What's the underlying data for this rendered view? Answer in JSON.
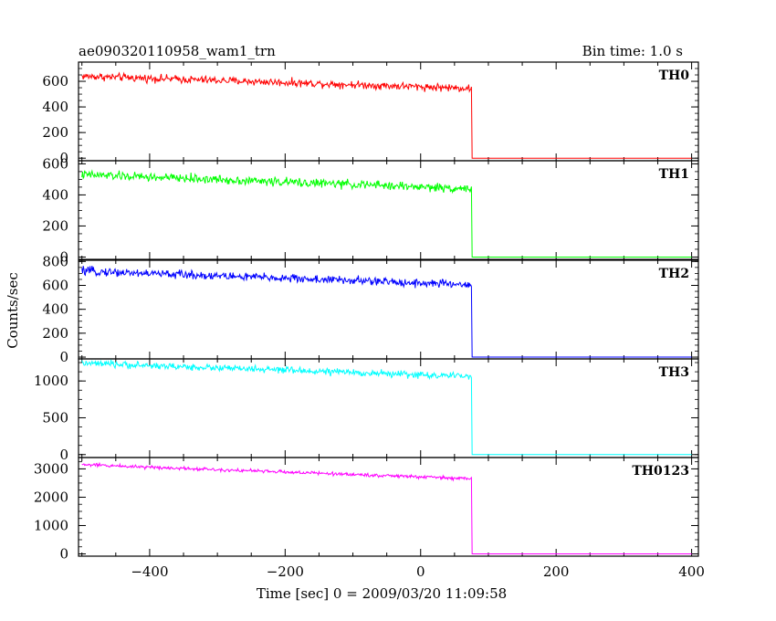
{
  "chart_data": {
    "type": "line",
    "title": "ae090320110958_wam1_trn",
    "subtitle": "Bin time: 1.0 s",
    "xlabel": "Time [sec] 0 = 2009/03/20 11:09:58",
    "ylabel": "Counts/sec",
    "xlim": [
      -505,
      410
    ],
    "x_ticks": [
      -400,
      -200,
      0,
      200,
      400
    ],
    "grid": false,
    "panels": [
      {
        "name": "TH0",
        "color": "#ff0000",
        "ylim": [
          -20,
          750
        ],
        "y_ticks": [
          0,
          200,
          400,
          600
        ],
        "x": [
          -500,
          75,
          76,
          400
        ],
        "start_value": 640,
        "pre_end_value": 545,
        "post_value": 0,
        "noise": 30
      },
      {
        "name": "TH1",
        "color": "#00ff00",
        "ylim": [
          -15,
          620
        ],
        "y_ticks": [
          0,
          200,
          400,
          600
        ],
        "x": [
          -500,
          75,
          76,
          400
        ],
        "start_value": 530,
        "pre_end_value": 440,
        "post_value": 0,
        "noise": 28
      },
      {
        "name": "TH2",
        "color": "#0000ff",
        "ylim": [
          -15,
          810
        ],
        "y_ticks": [
          0,
          200,
          400,
          600,
          800
        ],
        "x": [
          -500,
          75,
          76,
          400
        ],
        "start_value": 720,
        "pre_end_value": 605,
        "post_value": 0,
        "noise": 35
      },
      {
        "name": "TH3",
        "color": "#00ffff",
        "ylim": [
          -40,
          1300
        ],
        "y_ticks": [
          0,
          500,
          1000
        ],
        "x": [
          -500,
          75,
          76,
          400
        ],
        "start_value": 1240,
        "pre_end_value": 1060,
        "post_value": 0,
        "noise": 45
      },
      {
        "name": "TH0123",
        "color": "#ff00ff",
        "ylim": [
          -80,
          3400
        ],
        "y_ticks": [
          0,
          1000,
          2000,
          3000
        ],
        "x": [
          -500,
          75,
          76,
          400
        ],
        "start_value": 3150,
        "pre_end_value": 2650,
        "post_value": 0,
        "noise": 60
      }
    ]
  }
}
